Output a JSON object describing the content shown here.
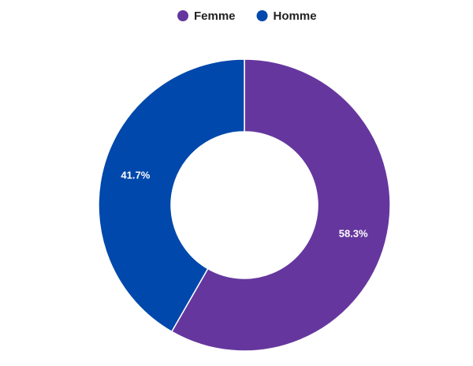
{
  "chart_data": {
    "type": "pie",
    "categories": [
      "Femme",
      "Homme"
    ],
    "values": [
      58.3,
      41.7
    ],
    "value_labels": [
      "58.3%",
      "41.7%"
    ],
    "colors": [
      "#65379e",
      "#0048ab"
    ],
    "legend": "top"
  }
}
